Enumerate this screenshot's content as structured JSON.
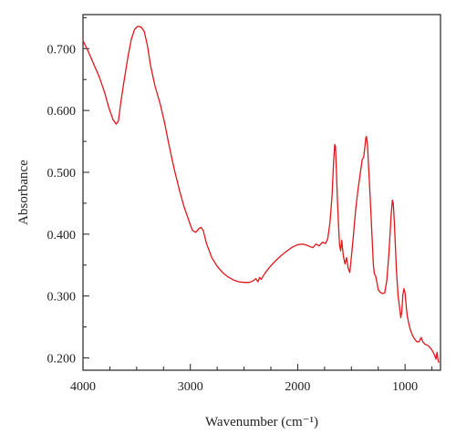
{
  "chart_data": {
    "type": "line",
    "title": "",
    "xlabel": "Wavenumber (cm⁻¹)",
    "ylabel": "Absorbance",
    "xlim": [
      4000,
      670
    ],
    "x_reversed": true,
    "ylim": [
      0.18,
      0.755
    ],
    "x_ticks": [
      4000,
      3000,
      2000,
      1000
    ],
    "x_tick_labels": [
      "4000",
      "3000",
      "2000",
      "1000"
    ],
    "y_ticks": [
      0.2,
      0.3,
      0.4,
      0.5,
      0.6,
      0.7
    ],
    "y_tick_labels": [
      "0.200",
      "0.300",
      "0.400",
      "0.500",
      "0.600",
      "0.700"
    ],
    "grid": false,
    "legend": "none",
    "line_color": "#e0161b",
    "series": [
      {
        "points": [
          [
            4000,
            0.713
          ],
          [
            3950,
            0.695
          ],
          [
            3900,
            0.675
          ],
          [
            3850,
            0.655
          ],
          [
            3800,
            0.63
          ],
          [
            3760,
            0.605
          ],
          [
            3720,
            0.585
          ],
          [
            3690,
            0.578
          ],
          [
            3670,
            0.583
          ],
          [
            3650,
            0.61
          ],
          [
            3620,
            0.645
          ],
          [
            3580,
            0.688
          ],
          [
            3550,
            0.715
          ],
          [
            3520,
            0.731
          ],
          [
            3490,
            0.736
          ],
          [
            3460,
            0.735
          ],
          [
            3430,
            0.728
          ],
          [
            3400,
            0.705
          ],
          [
            3370,
            0.672
          ],
          [
            3330,
            0.64
          ],
          [
            3280,
            0.61
          ],
          [
            3240,
            0.58
          ],
          [
            3200,
            0.545
          ],
          [
            3150,
            0.505
          ],
          [
            3100,
            0.47
          ],
          [
            3060,
            0.445
          ],
          [
            3020,
            0.425
          ],
          [
            3000,
            0.415
          ],
          [
            2980,
            0.406
          ],
          [
            2950,
            0.403
          ],
          [
            2920,
            0.409
          ],
          [
            2900,
            0.411
          ],
          [
            2880,
            0.406
          ],
          [
            2850,
            0.385
          ],
          [
            2800,
            0.362
          ],
          [
            2750,
            0.348
          ],
          [
            2700,
            0.338
          ],
          [
            2650,
            0.331
          ],
          [
            2600,
            0.326
          ],
          [
            2550,
            0.323
          ],
          [
            2500,
            0.322
          ],
          [
            2450,
            0.322
          ],
          [
            2420,
            0.324
          ],
          [
            2390,
            0.328
          ],
          [
            2370,
            0.323
          ],
          [
            2355,
            0.33
          ],
          [
            2340,
            0.327
          ],
          [
            2300,
            0.338
          ],
          [
            2250,
            0.349
          ],
          [
            2200,
            0.358
          ],
          [
            2150,
            0.366
          ],
          [
            2100,
            0.373
          ],
          [
            2050,
            0.379
          ],
          [
            2000,
            0.383
          ],
          [
            1950,
            0.384
          ],
          [
            1900,
            0.381
          ],
          [
            1860,
            0.378
          ],
          [
            1830,
            0.384
          ],
          [
            1800,
            0.381
          ],
          [
            1770,
            0.387
          ],
          [
            1740,
            0.385
          ],
          [
            1720,
            0.393
          ],
          [
            1700,
            0.418
          ],
          [
            1680,
            0.462
          ],
          [
            1665,
            0.52
          ],
          [
            1655,
            0.545
          ],
          [
            1648,
            0.542
          ],
          [
            1640,
            0.505
          ],
          [
            1630,
            0.455
          ],
          [
            1620,
            0.415
          ],
          [
            1610,
            0.382
          ],
          [
            1600,
            0.373
          ],
          [
            1590,
            0.39
          ],
          [
            1575,
            0.365
          ],
          [
            1560,
            0.352
          ],
          [
            1545,
            0.362
          ],
          [
            1530,
            0.345
          ],
          [
            1515,
            0.338
          ],
          [
            1505,
            0.355
          ],
          [
            1495,
            0.372
          ],
          [
            1480,
            0.4
          ],
          [
            1460,
            0.44
          ],
          [
            1440,
            0.47
          ],
          [
            1420,
            0.495
          ],
          [
            1400,
            0.52
          ],
          [
            1385,
            0.525
          ],
          [
            1375,
            0.54
          ],
          [
            1365,
            0.556
          ],
          [
            1360,
            0.558
          ],
          [
            1350,
            0.545
          ],
          [
            1340,
            0.51
          ],
          [
            1325,
            0.46
          ],
          [
            1310,
            0.405
          ],
          [
            1295,
            0.35
          ],
          [
            1285,
            0.335
          ],
          [
            1275,
            0.333
          ],
          [
            1260,
            0.32
          ],
          [
            1250,
            0.31
          ],
          [
            1230,
            0.306
          ],
          [
            1210,
            0.304
          ],
          [
            1190,
            0.305
          ],
          [
            1170,
            0.325
          ],
          [
            1150,
            0.37
          ],
          [
            1130,
            0.43
          ],
          [
            1118,
            0.455
          ],
          [
            1110,
            0.45
          ],
          [
            1100,
            0.42
          ],
          [
            1090,
            0.38
          ],
          [
            1080,
            0.34
          ],
          [
            1065,
            0.3
          ],
          [
            1050,
            0.28
          ],
          [
            1040,
            0.265
          ],
          [
            1030,
            0.275
          ],
          [
            1020,
            0.303
          ],
          [
            1010,
            0.312
          ],
          [
            1000,
            0.305
          ],
          [
            990,
            0.285
          ],
          [
            980,
            0.268
          ],
          [
            965,
            0.255
          ],
          [
            950,
            0.245
          ],
          [
            930,
            0.236
          ],
          [
            910,
            0.23
          ],
          [
            890,
            0.226
          ],
          [
            870,
            0.226
          ],
          [
            850,
            0.233
          ],
          [
            835,
            0.226
          ],
          [
            815,
            0.222
          ],
          [
            795,
            0.221
          ],
          [
            775,
            0.218
          ],
          [
            755,
            0.214
          ],
          [
            740,
            0.21
          ],
          [
            725,
            0.204
          ],
          [
            712,
            0.198
          ],
          [
            702,
            0.209
          ],
          [
            692,
            0.196
          ],
          [
            685,
            0.192
          ]
        ]
      }
    ]
  }
}
